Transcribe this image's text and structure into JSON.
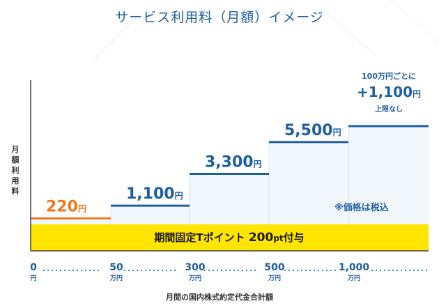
{
  "chart_data": {
    "type": "step",
    "title": "サービス利用料（月額）イメージ",
    "ylabel": "月額利用料",
    "xlabel": "月間の国内株式約定代金合計額",
    "x_ticks": [
      {
        "num": "0",
        "unit": "円"
      },
      {
        "num": "50",
        "unit": "万円"
      },
      {
        "num": "300",
        "unit": "万円"
      },
      {
        "num": "500",
        "unit": "万円"
      },
      {
        "num": "1,000",
        "unit": "万円"
      }
    ],
    "steps": [
      {
        "range": "0〜50万円",
        "fee": 220,
        "label": "220",
        "unit": "円",
        "color": "#f07a1a"
      },
      {
        "range": "50万〜300万円",
        "fee": 1100,
        "label": "1,100",
        "unit": "円",
        "color": "#1f5fa0"
      },
      {
        "range": "300万〜500万円",
        "fee": 3300,
        "label": "3,300",
        "unit": "円",
        "color": "#1f5fa0"
      },
      {
        "range": "500万〜1,000万円",
        "fee": 5500,
        "label": "5,500",
        "unit": "円",
        "color": "#1f5fa0"
      },
      {
        "range": "1,000万円〜",
        "fee": 6600,
        "label": "",
        "unit": "",
        "color": "#1f5fa0"
      }
    ],
    "top_annotation": {
      "line1": "100万円ごとに",
      "line2": "+1,100",
      "line2_unit": "円",
      "line3": "上限なし"
    },
    "band": {
      "pre": "期間固定Tポイント ",
      "num": "200",
      "small": "pt",
      "post": "付与",
      "color": "#ffe500"
    },
    "note": "※価格は税込"
  }
}
